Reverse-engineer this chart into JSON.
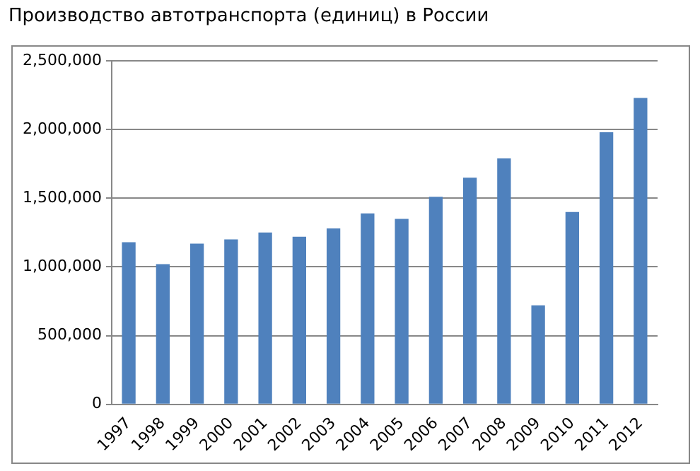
{
  "chart_data": {
    "type": "bar",
    "title": "Производство автотранспорта (единиц) в России",
    "categories": [
      "1997",
      "1998",
      "1999",
      "2000",
      "2001",
      "2002",
      "2003",
      "2004",
      "2005",
      "2006",
      "2007",
      "2008",
      "2009",
      "2010",
      "2011",
      "2012"
    ],
    "values": [
      1180000,
      1020000,
      1170000,
      1200000,
      1250000,
      1220000,
      1280000,
      1390000,
      1350000,
      1510000,
      1650000,
      1790000,
      720000,
      1400000,
      1980000,
      2230000
    ],
    "color": "#4f81bd",
    "ylim": [
      0,
      2500000
    ],
    "yticks": [
      0,
      {
        "value": 500000,
        "label": "500,000"
      },
      {
        "value": 1000000,
        "label": "1,000,000"
      },
      {
        "value": 1500000,
        "label": "1,500,000"
      },
      {
        "value": 2000000,
        "label": "2,000,000"
      },
      {
        "value": 2500000,
        "label": "2,500,000"
      }
    ],
    "grid": "y"
  }
}
